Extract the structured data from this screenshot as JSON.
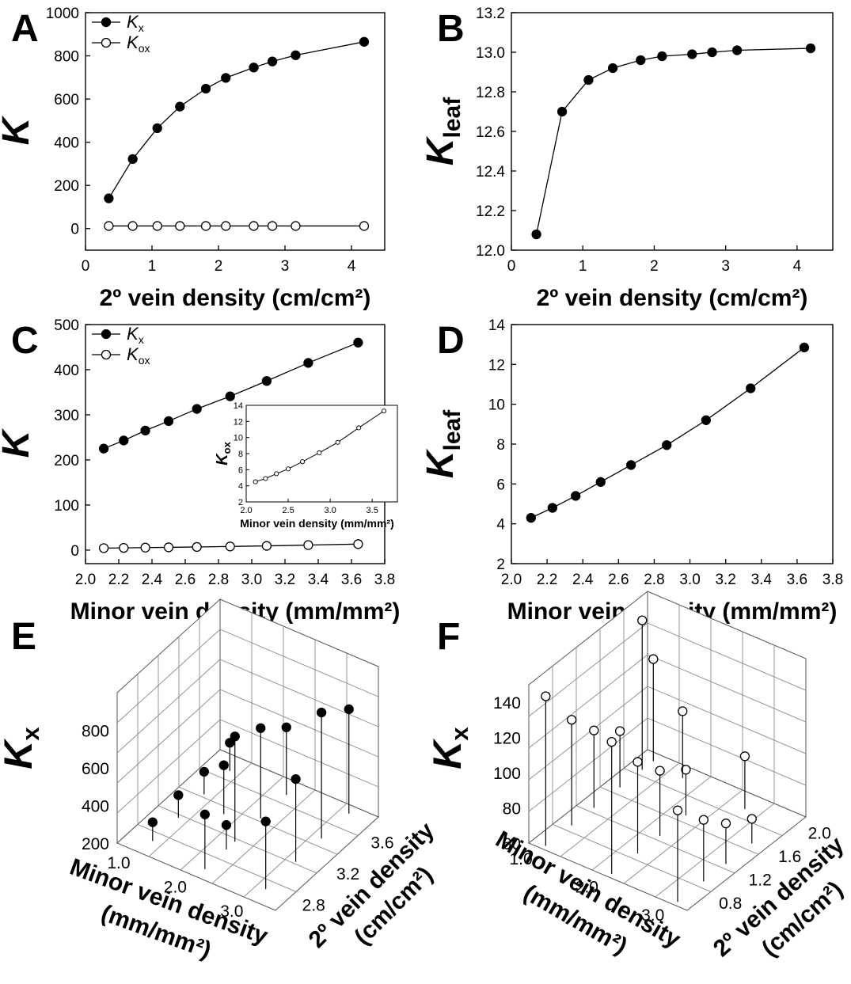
{
  "chart_data": [
    {
      "id": "A",
      "panel_letter": "A",
      "type": "line",
      "xlabel": "2º vein density (cm/cm²)",
      "ylabel": "K",
      "xlim": [
        0,
        4.5
      ],
      "ylim": [
        -100,
        1000
      ],
      "xticks": [
        "0",
        "1",
        "2",
        "3",
        "4"
      ],
      "yticks": [
        "0",
        "200",
        "400",
        "600",
        "800",
        "1000"
      ],
      "legend_position": "top-left",
      "series": [
        {
          "name": "K",
          "subscript": "x",
          "marker": "filled",
          "x": [
            0.35,
            0.71,
            1.08,
            1.42,
            1.81,
            2.11,
            2.53,
            2.81,
            3.16,
            4.19
          ],
          "y": [
            140,
            322,
            465,
            565,
            648,
            698,
            746,
            774,
            803,
            865
          ]
        },
        {
          "name": "K",
          "subscript": "ox",
          "marker": "open",
          "x": [
            0.35,
            0.71,
            1.08,
            1.42,
            1.81,
            2.11,
            2.53,
            2.81,
            3.16,
            4.19
          ],
          "y": [
            12,
            12,
            12,
            12,
            12,
            12,
            12,
            12,
            12,
            12
          ]
        }
      ]
    },
    {
      "id": "B",
      "panel_letter": "B",
      "type": "line",
      "xlabel": "2º vein density (cm/cm²)",
      "ylabel": "K",
      "ylabel_sub": "leaf",
      "xlim": [
        0,
        4.5
      ],
      "ylim": [
        12.0,
        13.2
      ],
      "xticks": [
        "0",
        "1",
        "2",
        "3",
        "4"
      ],
      "yticks": [
        "12.0",
        "12.2",
        "12.4",
        "12.6",
        "12.8",
        "13.0",
        "13.2"
      ],
      "series": [
        {
          "marker": "filled",
          "x": [
            0.35,
            0.71,
            1.08,
            1.42,
            1.81,
            2.11,
            2.53,
            2.81,
            3.16,
            4.19
          ],
          "y": [
            12.08,
            12.7,
            12.86,
            12.92,
            12.96,
            12.98,
            12.99,
            13.0,
            13.01,
            13.02
          ]
        }
      ]
    },
    {
      "id": "C",
      "panel_letter": "C",
      "type": "line",
      "xlabel": "Minor vein density (mm/mm²)",
      "ylabel": "K",
      "xlim": [
        2.0,
        3.8
      ],
      "ylim": [
        -30,
        500
      ],
      "xticks": [
        "2.0",
        "2.2",
        "2.4",
        "2.6",
        "2.8",
        "3.0",
        "3.2",
        "3.4",
        "3.6",
        "3.8"
      ],
      "yticks": [
        "0",
        "100",
        "200",
        "300",
        "400",
        "500"
      ],
      "legend_position": "top-left",
      "series": [
        {
          "name": "K",
          "subscript": "x",
          "marker": "filled",
          "x": [
            2.11,
            2.23,
            2.36,
            2.5,
            2.67,
            2.87,
            3.09,
            3.34,
            3.64
          ],
          "y": [
            225,
            243,
            265,
            286,
            313,
            341,
            375,
            415,
            460
          ]
        },
        {
          "name": "K",
          "subscript": "ox",
          "marker": "open",
          "x": [
            2.11,
            2.23,
            2.36,
            2.5,
            2.67,
            2.87,
            3.09,
            3.34,
            3.64
          ],
          "y": [
            4.5,
            4.9,
            5.5,
            6.1,
            7.0,
            8.1,
            9.4,
            11.2,
            13.3
          ]
        }
      ],
      "inset": {
        "xlabel": "Minor vein density (mm/mm²)",
        "ylabel": "K",
        "ylabel_sub": "ox",
        "xlim": [
          2.0,
          3.8
        ],
        "ylim": [
          2,
          14
        ],
        "xticks": [
          "2.0",
          "2.5",
          "3.0",
          "3.5"
        ],
        "yticks": [
          "2",
          "4",
          "6",
          "8",
          "10",
          "12",
          "14"
        ],
        "series": [
          {
            "marker": "open",
            "x": [
              2.11,
              2.23,
              2.36,
              2.5,
              2.67,
              2.87,
              3.09,
              3.34,
              3.64
            ],
            "y": [
              4.5,
              4.9,
              5.5,
              6.1,
              7.0,
              8.1,
              9.4,
              11.2,
              13.3
            ]
          }
        ]
      }
    },
    {
      "id": "D",
      "panel_letter": "D",
      "type": "line",
      "xlabel": "Minor vein density (mm/mm²)",
      "ylabel": "K",
      "ylabel_sub": "leaf",
      "xlim": [
        2.0,
        3.8
      ],
      "ylim": [
        2,
        14
      ],
      "xticks": [
        "2.0",
        "2.2",
        "2.4",
        "2.6",
        "2.8",
        "3.0",
        "3.2",
        "3.4",
        "3.6",
        "3.8"
      ],
      "yticks": [
        "2",
        "4",
        "6",
        "8",
        "10",
        "12",
        "14"
      ],
      "series": [
        {
          "marker": "filled",
          "x": [
            2.11,
            2.23,
            2.36,
            2.5,
            2.67,
            2.87,
            3.09,
            3.34,
            3.64
          ],
          "y": [
            4.3,
            4.8,
            5.4,
            6.1,
            6.95,
            7.95,
            9.2,
            10.8,
            12.85
          ]
        }
      ]
    },
    {
      "id": "E",
      "panel_letter": "E",
      "type": "scatter",
      "zlabel": "K",
      "zlabel_sub": "x",
      "z_ticks": [
        "200",
        "400",
        "600",
        "800"
      ],
      "minor_ticks": [
        "3.0",
        "2.0",
        "1.0"
      ],
      "minor_label_lines": [
        "Minor vein density",
        "(mm/mm²)"
      ],
      "second_ticks": [
        "2.8",
        "3.2",
        "3.6"
      ],
      "second_label_lines": [
        "2º vein density",
        "(cm/cm²)"
      ],
      "marker": "filled",
      "minor_range": [
        0.6,
        3.4
      ],
      "second_range": [
        2.6,
        3.8
      ],
      "z_range": [
        200,
        1000
      ],
      "points": [
        {
          "minor": 3.0,
          "second": 2.75,
          "z": 560
        },
        {
          "minor": 3.0,
          "second": 3.1,
          "z": 640
        },
        {
          "minor": 3.0,
          "second": 3.4,
          "z": 870
        },
        {
          "minor": 3.0,
          "second": 3.72,
          "z": 755
        },
        {
          "minor": 2.0,
          "second": 2.7,
          "z": 490
        },
        {
          "minor": 2.0,
          "second": 3.05,
          "z": 760
        },
        {
          "minor": 2.0,
          "second": 3.35,
          "z": 680
        },
        {
          "minor": 2.0,
          "second": 3.65,
          "z": 560
        },
        {
          "minor": 1.0,
          "second": 2.75,
          "z": 300
        },
        {
          "minor": 1.0,
          "second": 3.05,
          "z": 320
        },
        {
          "minor": 1.0,
          "second": 3.35,
          "z": 320
        },
        {
          "minor": 1.0,
          "second": 3.65,
          "z": 350
        },
        {
          "minor": 2.0,
          "second": 2.95,
          "z": 330
        },
        {
          "minor": 1.5,
          "second": 3.25,
          "z": 460
        }
      ]
    },
    {
      "id": "F",
      "panel_letter": "F",
      "type": "scatter",
      "zlabel": "K",
      "zlabel_sub": "x",
      "z_ticks": [
        "60",
        "80",
        "100",
        "120",
        "140"
      ],
      "minor_ticks": [
        "3.0",
        "2.0",
        "1.0"
      ],
      "minor_label_lines": [
        "Minor vein density",
        "(mm/mm²)"
      ],
      "second_ticks": [
        "0.8",
        "1.2",
        "1.6",
        "2.0"
      ],
      "second_label_lines": [
        "2º vein density",
        "(cm/cm²)"
      ],
      "marker": "open",
      "minor_range": [
        0.8,
        3.2
      ],
      "second_range": [
        0.5,
        2.1
      ],
      "z_range": [
        60,
        150
      ],
      "points": [
        {
          "minor": 3.0,
          "second": 0.55,
          "z": 112
        },
        {
          "minor": 3.0,
          "second": 0.9,
          "z": 95
        },
        {
          "minor": 3.0,
          "second": 1.2,
          "z": 83
        },
        {
          "minor": 3.0,
          "second": 1.55,
          "z": 74
        },
        {
          "minor": 2.0,
          "second": 0.55,
          "z": 135
        },
        {
          "minor": 2.0,
          "second": 0.9,
          "z": 112
        },
        {
          "minor": 2.0,
          "second": 1.2,
          "z": 97
        },
        {
          "minor": 2.0,
          "second": 1.55,
          "z": 86
        },
        {
          "minor": 1.0,
          "second": 0.55,
          "z": 145
        },
        {
          "minor": 1.0,
          "second": 0.9,
          "z": 120
        },
        {
          "minor": 1.0,
          "second": 1.2,
          "z": 104
        },
        {
          "minor": 1.0,
          "second": 1.55,
          "z": 92
        },
        {
          "minor": 1.0,
          "second": 1.85,
          "z": 145
        },
        {
          "minor": 1.0,
          "second": 2.0,
          "z": 118
        },
        {
          "minor": 1.5,
          "second": 1.95,
          "z": 98
        },
        {
          "minor": 2.5,
          "second": 1.9,
          "z": 90
        }
      ]
    }
  ]
}
